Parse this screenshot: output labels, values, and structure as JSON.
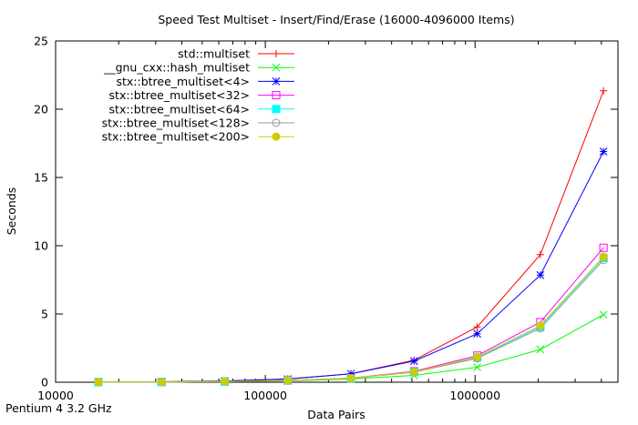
{
  "chart_data": {
    "type": "line",
    "title": "Speed Test Multiset - Insert/Find/Erase (16000-4096000 Items)",
    "xlabel": "Data Pairs",
    "ylabel": "Seconds",
    "xscale": "log",
    "xlim": [
      10000,
      4800000
    ],
    "ylim": [
      0,
      25
    ],
    "xticks": [
      10000,
      100000,
      1000000
    ],
    "xtick_labels": [
      "10000",
      "100000",
      "1000000"
    ],
    "yticks": [
      0,
      5,
      10,
      15,
      20,
      25
    ],
    "ytick_labels": [
      "0",
      "5",
      "10",
      "15",
      "20",
      "25"
    ],
    "grid": false,
    "legend_position": "top-left",
    "x": [
      16000,
      32000,
      64000,
      128000,
      256000,
      512000,
      1024000,
      2048000,
      4096000
    ],
    "series": [
      {
        "name": "std::multiset",
        "color": "#ff0000",
        "marker": "plus",
        "values": [
          0.01,
          0.03,
          0.09,
          0.24,
          0.62,
          1.62,
          4.05,
          9.35,
          21.35
        ]
      },
      {
        "name": "__gnu_cxx::hash_multiset",
        "color": "#00ff00",
        "marker": "cross",
        "values": [
          0.01,
          0.02,
          0.04,
          0.1,
          0.23,
          0.5,
          1.1,
          2.4,
          4.95
        ]
      },
      {
        "name": "stx::btree_multiset<4>",
        "color": "#0000ff",
        "marker": "star",
        "values": [
          0.01,
          0.03,
          0.09,
          0.23,
          0.62,
          1.55,
          3.55,
          7.85,
          16.9
        ]
      },
      {
        "name": "stx::btree_multiset<32>",
        "color": "#ff00ff",
        "marker": "open-square",
        "values": [
          0.01,
          0.02,
          0.05,
          0.13,
          0.3,
          0.8,
          1.95,
          4.4,
          9.85
        ]
      },
      {
        "name": "stx::btree_multiset<64>",
        "color": "#00ffff",
        "marker": "filled-square",
        "values": [
          0.01,
          0.02,
          0.05,
          0.12,
          0.28,
          0.75,
          1.8,
          4.05,
          9.1
        ]
      },
      {
        "name": "stx::btree_multiset<128>",
        "color": "#999999",
        "marker": "open-circle",
        "values": [
          0.01,
          0.02,
          0.05,
          0.12,
          0.28,
          0.73,
          1.75,
          3.95,
          8.95
        ]
      },
      {
        "name": "stx::btree_multiset<200>",
        "color": "#cccc00",
        "marker": "filled-circle",
        "values": [
          0.01,
          0.02,
          0.05,
          0.13,
          0.29,
          0.76,
          1.85,
          4.15,
          9.2
        ]
      }
    ]
  },
  "footnote": "Pentium 4 3.2 GHz"
}
